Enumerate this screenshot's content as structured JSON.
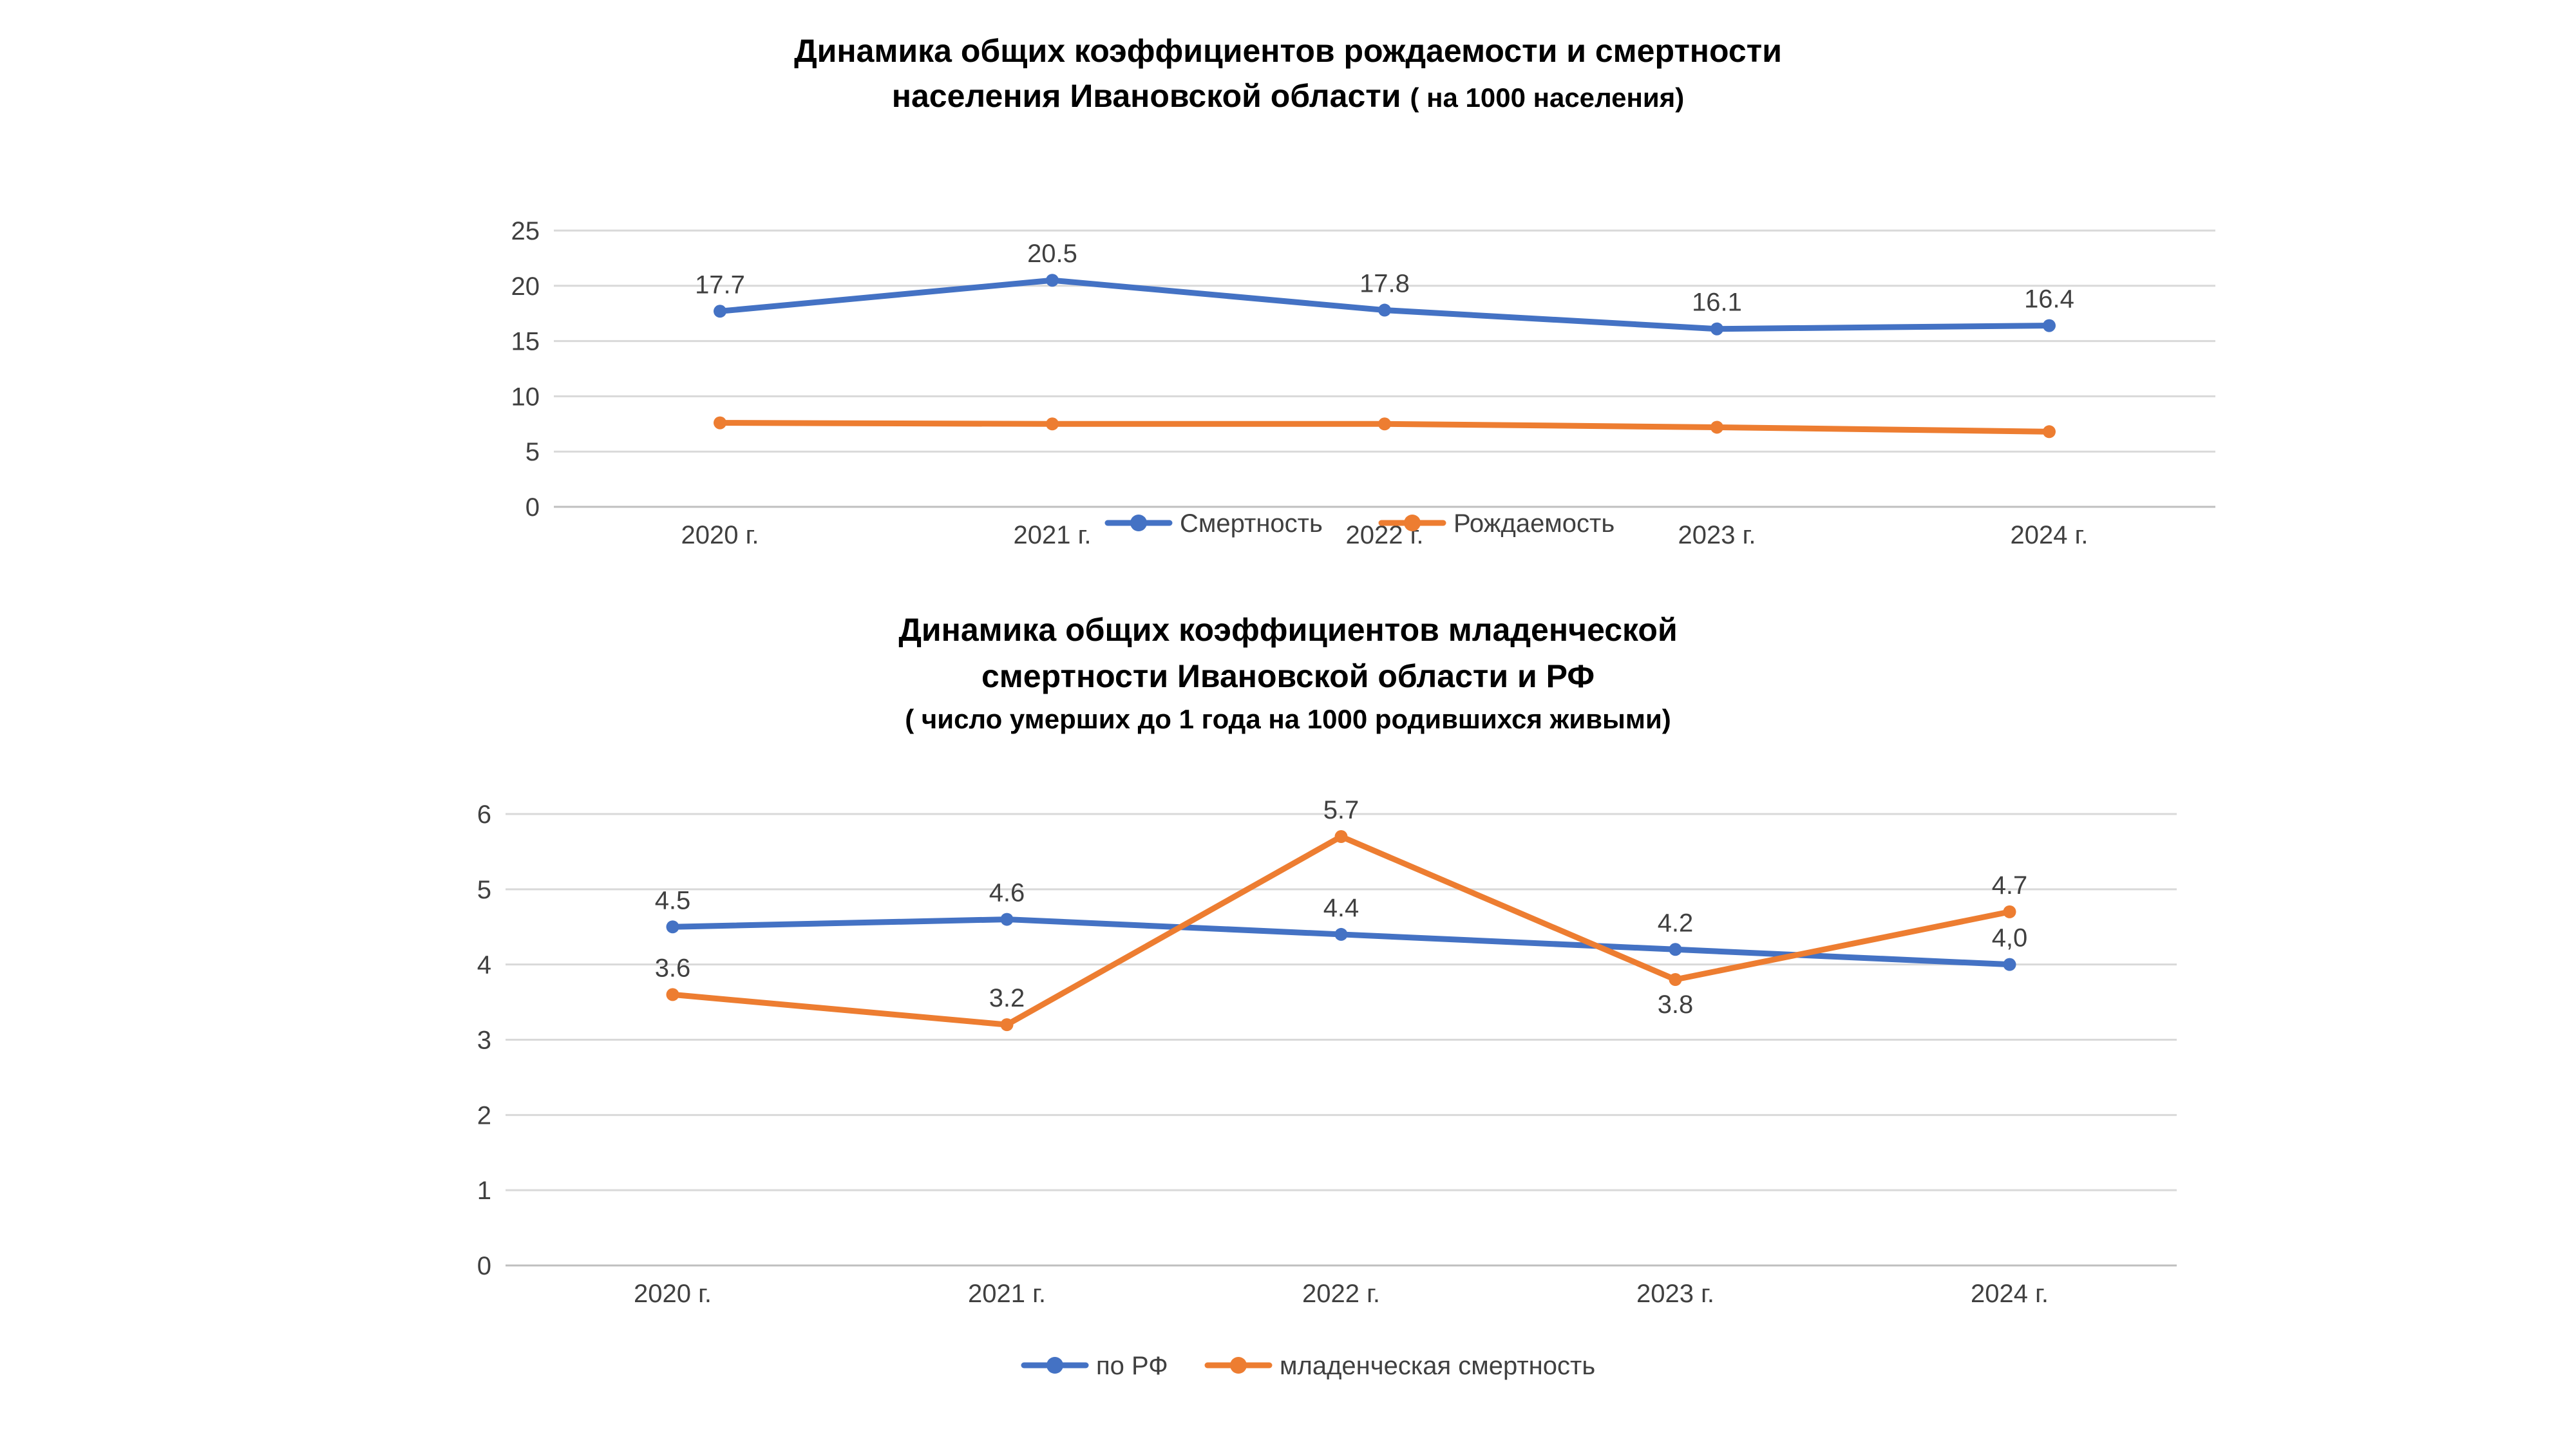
{
  "chart_data": [
    {
      "type": "line",
      "title_line1": "Динамика общих коэффициентов рождаемости и смертности",
      "title_line2": "населения Ивановской области",
      "title_note": "( на 1000 населения)",
      "categories": [
        "2020 г.",
        "2021 г.",
        "2022 г.",
        "2023 г.",
        "2024 г."
      ],
      "ylim": [
        0,
        25
      ],
      "yticks": [
        "0",
        "5",
        "10",
        "15",
        "20",
        "25"
      ],
      "grid": true,
      "legend_position": "bottom-overlap",
      "series": [
        {
          "name": "Смертность",
          "color": "#4472C4",
          "values": [
            17.7,
            20.5,
            17.8,
            16.1,
            16.4
          ],
          "labels": [
            "17.7",
            "20.5",
            "17.8",
            "16.1",
            "16.4"
          ]
        },
        {
          "name": "Рождаемость",
          "color": "#ED7D31",
          "values": [
            7.6,
            7.5,
            7.5,
            7.2,
            6.8
          ],
          "labels": [
            "",
            "",
            "",
            "",
            ""
          ]
        }
      ]
    },
    {
      "type": "line",
      "title_line1": "Динамика общих коэффициентов младенческой",
      "title_line2": "смертности Ивановской области и РФ",
      "title_note": "( число умерших до 1 года на 1000 родившихся живыми)",
      "categories": [
        "2020 г.",
        "2021 г.",
        "2022 г.",
        "2023 г.",
        "2024 г."
      ],
      "ylim": [
        0,
        6
      ],
      "yticks": [
        "0",
        "1",
        "2",
        "3",
        "4",
        "5",
        "6"
      ],
      "grid": true,
      "legend_position": "bottom",
      "series": [
        {
          "name": "по РФ",
          "color": "#4472C4",
          "values": [
            4.5,
            4.6,
            4.4,
            4.2,
            4.0
          ],
          "labels": [
            "4.5",
            "4.6",
            "4.4",
            "4.2",
            "4,0"
          ],
          "label_pos": [
            "above",
            "above",
            "above",
            "above",
            "above"
          ]
        },
        {
          "name": "младенческая смертность",
          "color": "#ED7D31",
          "values": [
            3.6,
            3.2,
            5.7,
            3.8,
            4.7
          ],
          "labels": [
            "3.6",
            "3.2",
            "5.7",
            "3.8",
            "4.7"
          ],
          "label_pos": [
            "above",
            "above",
            "above",
            "below",
            "above"
          ]
        }
      ]
    }
  ]
}
